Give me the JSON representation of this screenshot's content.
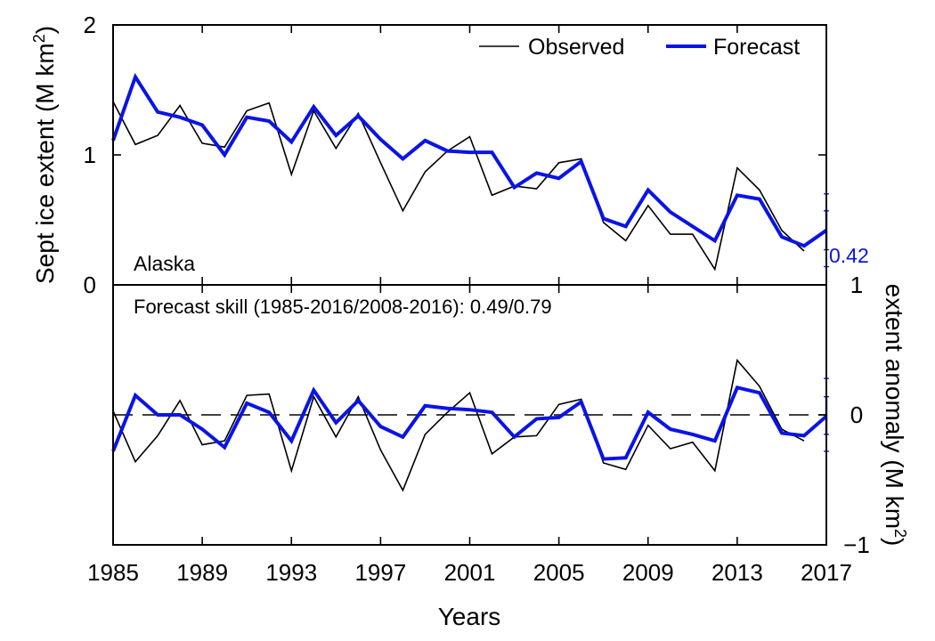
{
  "chart_data": {
    "type": "line",
    "region_label": "Alaska",
    "x": [
      1985,
      1986,
      1987,
      1988,
      1989,
      1990,
      1991,
      1992,
      1993,
      1994,
      1995,
      1996,
      1997,
      1998,
      1999,
      2000,
      2001,
      2002,
      2003,
      2004,
      2005,
      2006,
      2007,
      2008,
      2009,
      2010,
      2011,
      2012,
      2013,
      2014,
      2015,
      2016,
      2017
    ],
    "xticks": [
      1985,
      1989,
      1993,
      1997,
      2001,
      2005,
      2009,
      2013,
      2017
    ],
    "xlabel": "Years",
    "legend": {
      "position": "top-right",
      "observed": "Observed",
      "forecast": "Forecast"
    },
    "colors": {
      "observed": "#000000",
      "forecast": "#0a14e6"
    },
    "top": {
      "ylabel": "Sept ice extent (M km",
      "ylabel_sup": "2",
      "ylabel_end": ")",
      "ylim": [
        0,
        2
      ],
      "yticks": [
        0,
        1,
        2
      ],
      "observed": [
        1.41,
        1.08,
        1.15,
        1.38,
        1.09,
        1.06,
        1.34,
        1.4,
        0.85,
        1.34,
        1.05,
        1.32,
        0.94,
        0.57,
        0.87,
        1.03,
        1.14,
        0.69,
        0.76,
        0.74,
        0.94,
        0.97,
        0.48,
        0.34,
        0.61,
        0.39,
        0.39,
        0.12,
        0.9,
        0.73,
        0.42,
        0.26
      ],
      "forecast": [
        1.11,
        1.6,
        1.33,
        1.29,
        1.23,
        1.0,
        1.29,
        1.26,
        1.1,
        1.37,
        1.15,
        1.3,
        1.12,
        0.97,
        1.11,
        1.03,
        1.02,
        1.02,
        0.75,
        0.86,
        0.82,
        0.95,
        0.51,
        0.45,
        0.73,
        0.56,
        0.45,
        0.34,
        0.69,
        0.66,
        0.37,
        0.3,
        0.42
      ],
      "forecast_2017": 0.42,
      "forecast_2017_label": "0.42",
      "error_bar": {
        "inner": [
          0.27,
          0.57
        ],
        "outer": [
          0.14,
          0.7
        ]
      }
    },
    "bottom": {
      "ylabel": "extent anomaly (M km",
      "ylabel_sup": "2",
      "ylabel_end": ")",
      "ylim": [
        -1,
        1
      ],
      "yticks": [
        -1,
        0,
        1
      ],
      "ytick_labels": [
        "−1",
        "0",
        "1"
      ],
      "skill_text": "Forecast skill (1985-2016/2008-2016): 0.49/0.79",
      "observed": [
        0.03,
        -0.36,
        -0.16,
        0.11,
        -0.23,
        -0.2,
        0.15,
        0.16,
        -0.43,
        0.14,
        -0.17,
        0.14,
        -0.27,
        -0.58,
        -0.15,
        0.02,
        0.17,
        -0.3,
        -0.17,
        -0.16,
        0.08,
        0.12,
        -0.37,
        -0.42,
        -0.08,
        -0.26,
        -0.21,
        -0.43,
        0.42,
        0.22,
        -0.11,
        -0.2
      ],
      "forecast": [
        -0.28,
        0.15,
        0.0,
        0.0,
        -0.11,
        -0.25,
        0.09,
        0.02,
        -0.2,
        0.19,
        -0.06,
        0.11,
        -0.09,
        -0.17,
        0.07,
        0.05,
        0.04,
        0.02,
        -0.17,
        -0.03,
        -0.02,
        0.1,
        -0.34,
        -0.33,
        0.02,
        -0.11,
        -0.15,
        -0.2,
        0.21,
        0.17,
        -0.14,
        -0.16,
        -0.01
      ],
      "zero_line": 0,
      "error_bar": {
        "inner": [
          -0.15,
          0.14
        ],
        "outer": [
          -0.28,
          0.28
        ]
      }
    }
  }
}
